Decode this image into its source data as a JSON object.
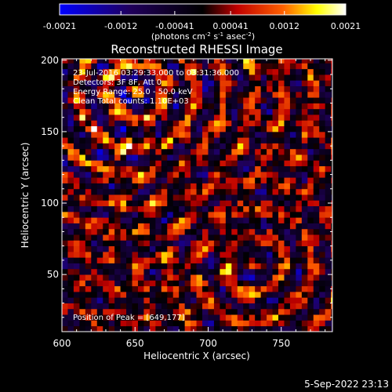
{
  "chart_data": {
    "type": "heatmap",
    "title": "Reconstructed RHESSI Image",
    "xlabel": "Heliocentric X (arcsec)",
    "ylabel": "Heliocentric Y (arcsec)",
    "xlim": [
      600,
      785
    ],
    "ylim": [
      10,
      201
    ],
    "xticks": [
      "600",
      "650",
      "700",
      "750"
    ],
    "yticks": [
      "50",
      "100",
      "150",
      "200"
    ],
    "grid": false,
    "colorbar": {
      "placement": "top",
      "min": -0.0021,
      "max": 0.0021,
      "ticks": [
        "-0.0021",
        "-0.0012",
        "-0.00041",
        "0.00041",
        "0.0012",
        "0.0021"
      ],
      "unit_text": "(photons cm",
      "unit_sup1": "-2",
      "unit_mid": " s",
      "unit_sup2": "-1",
      "unit_mid2": " asec",
      "unit_sup3": "-2",
      "unit_end": ")",
      "colors": [
        "#0000ff",
        "#000000",
        "#ff0000",
        "#ffff00",
        "#ffffff"
      ]
    },
    "annotations": {
      "time_range": "23-Jul-2016 03:29:33.000 to 03:31:36.000",
      "detectors": "Detectors: 3F 8F, Att 0",
      "energy": "Energy Range: 25.0 - 50.0 keV",
      "clean": "Clean     Total counts: 1.10E+03",
      "peak": "Position of Peak = [649,177]"
    },
    "timestamp": "5-Sep-2022 23:13",
    "peak_position": [
      649,
      177
    ],
    "grid_size": [
      46,
      48
    ],
    "pixel_size_arcsec": 4
  }
}
